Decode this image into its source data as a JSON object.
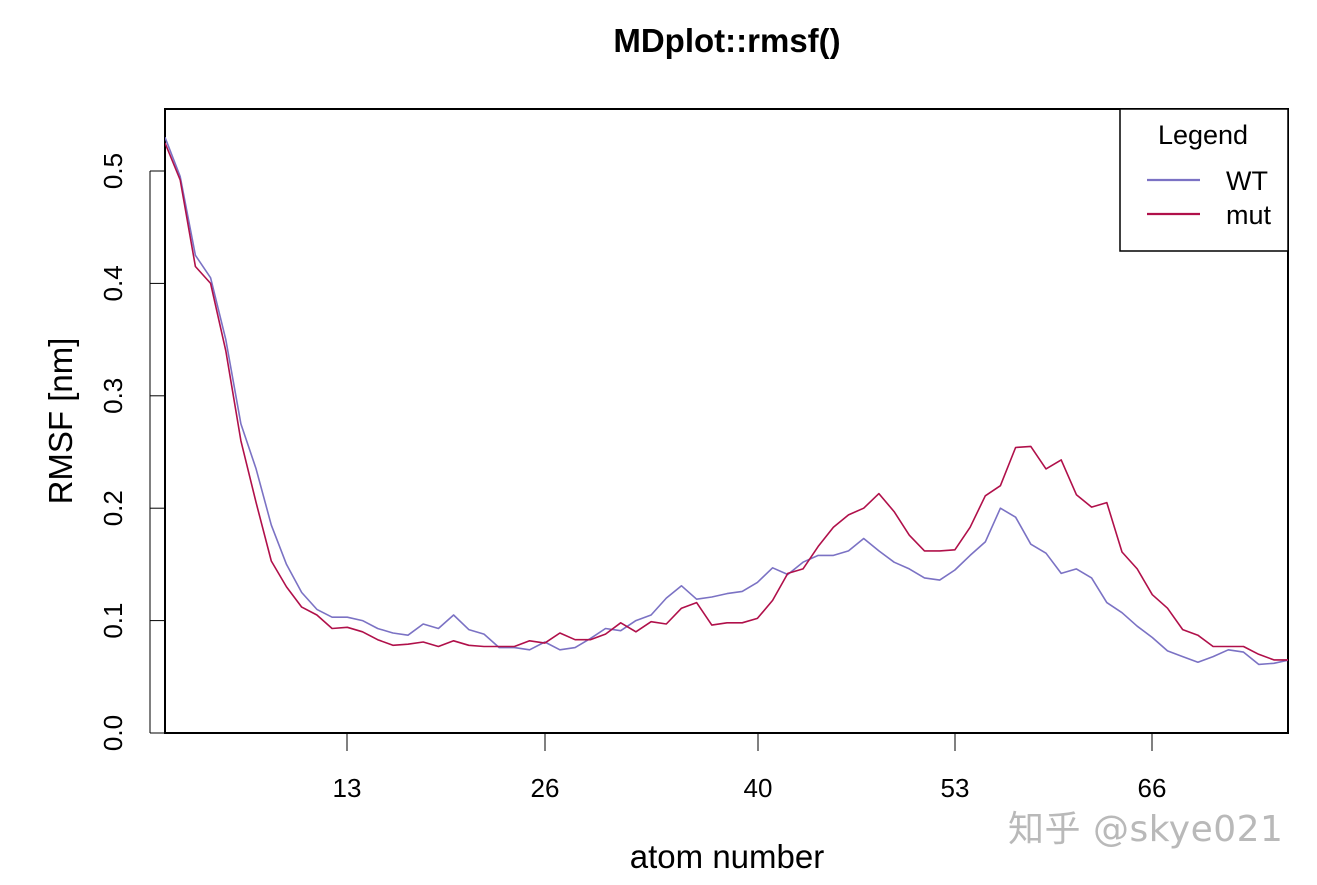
{
  "chart_data": {
    "type": "line",
    "title": "MDplot::rmsf()",
    "xlabel": "atom number",
    "ylabel": "RMSF [nm]",
    "xlim": [
      1,
      75
    ],
    "ylim": [
      0.0,
      0.55
    ],
    "x_ticks": [
      13,
      26,
      40,
      53,
      66
    ],
    "y_ticks": [
      0.0,
      0.1,
      0.2,
      0.3,
      0.4,
      0.5
    ],
    "y_tick_labels": [
      "0.0",
      "0.1",
      "0.2",
      "0.3",
      "0.4",
      "0.5"
    ],
    "grid": false,
    "legend": {
      "title": "Legend",
      "position": "topright",
      "entries": [
        {
          "label": "WT",
          "color": "#7b72c4"
        },
        {
          "label": "mut",
          "color": "#b0104a"
        }
      ]
    },
    "x": [
      1,
      2,
      3,
      4,
      5,
      6,
      7,
      8,
      9,
      10,
      11,
      12,
      13,
      14,
      15,
      16,
      17,
      18,
      19,
      20,
      21,
      22,
      23,
      24,
      25,
      26,
      27,
      28,
      29,
      30,
      31,
      32,
      33,
      34,
      35,
      36,
      37,
      38,
      39,
      40,
      41,
      42,
      43,
      44,
      45,
      46,
      47,
      48,
      49,
      50,
      51,
      52,
      53,
      54,
      55,
      56,
      57,
      58,
      59,
      60,
      61,
      62,
      63,
      64,
      65,
      66,
      67,
      68,
      69,
      70,
      71,
      72,
      73,
      74,
      75
    ],
    "series": [
      {
        "name": "WT",
        "color": "#7b72c4",
        "values": [
          0.53,
          0.495,
          0.425,
          0.405,
          0.35,
          0.275,
          0.235,
          0.185,
          0.15,
          0.125,
          0.11,
          0.103,
          0.103,
          0.1,
          0.093,
          0.089,
          0.087,
          0.097,
          0.093,
          0.105,
          0.092,
          0.088,
          0.076,
          0.076,
          0.074,
          0.081,
          0.074,
          0.076,
          0.084,
          0.093,
          0.091,
          0.1,
          0.105,
          0.12,
          0.131,
          0.119,
          0.121,
          0.124,
          0.126,
          0.134,
          0.147,
          0.141,
          0.152,
          0.158,
          0.158,
          0.162,
          0.173,
          0.162,
          0.152,
          0.146,
          0.138,
          0.136,
          0.145,
          0.158,
          0.17,
          0.2,
          0.192,
          0.168,
          0.16,
          0.142,
          0.146,
          0.138,
          0.116,
          0.107,
          0.095,
          0.085,
          0.073,
          0.068,
          0.063,
          0.068,
          0.074,
          0.072,
          0.061,
          0.062,
          0.065
        ]
      },
      {
        "name": "mut",
        "color": "#b0104a",
        "values": [
          0.525,
          0.492,
          0.415,
          0.4,
          0.34,
          0.26,
          0.205,
          0.153,
          0.13,
          0.112,
          0.105,
          0.093,
          0.094,
          0.09,
          0.083,
          0.078,
          0.079,
          0.081,
          0.077,
          0.082,
          0.078,
          0.077,
          0.077,
          0.077,
          0.082,
          0.08,
          0.089,
          0.083,
          0.083,
          0.088,
          0.098,
          0.09,
          0.099,
          0.097,
          0.111,
          0.116,
          0.096,
          0.098,
          0.098,
          0.102,
          0.118,
          0.142,
          0.146,
          0.166,
          0.183,
          0.194,
          0.2,
          0.213,
          0.197,
          0.176,
          0.162,
          0.162,
          0.163,
          0.183,
          0.211,
          0.22,
          0.254,
          0.255,
          0.235,
          0.243,
          0.212,
          0.201,
          0.205,
          0.161,
          0.146,
          0.123,
          0.111,
          0.092,
          0.087,
          0.077,
          0.077,
          0.077,
          0.07,
          0.065,
          0.065
        ]
      }
    ]
  },
  "watermark": "知乎 @skye021"
}
